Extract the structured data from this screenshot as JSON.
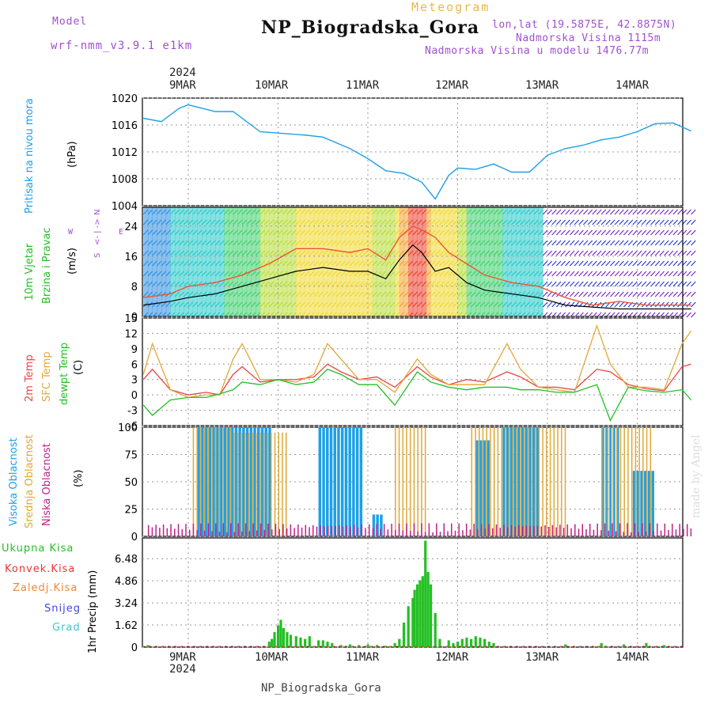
{
  "header": {
    "model_label": "Model",
    "model_name": "wrf-nmm_v3.9.1 e1km",
    "meteogram_label": "Meteogram",
    "station": "NP_Biogradska_Gora",
    "lonlat": "lon,lat (19.5875E, 42.8875N)",
    "elevation": "Nadmorska Visina 1115m",
    "model_elevation": "Nadmorska Visina u modelu 1476.77m",
    "year_top": "2024",
    "footer_station": "NP_Biogradska_Gora",
    "year_bottom": "2024",
    "credit": "made by Angel"
  },
  "dates": [
    "9MAR",
    "10MAR",
    "11MAR",
    "12MAR",
    "13MAR",
    "14MAR"
  ],
  "panel_labels": {
    "pressure": [
      "Pritisak na nivou mora",
      "(hPa)"
    ],
    "wind": [
      "10m Vjetar",
      "Brzina i Pravac",
      "(m/s)"
    ],
    "compass": [
      "S",
      "<- | ->",
      "N",
      "W",
      "E"
    ],
    "temp": [
      "2m Temp",
      "SFC Temp",
      "dewpt Temp",
      "(C)"
    ],
    "cloud": [
      "Visoka Oblacnost",
      "Srednja Oblacnost",
      "Niska Oblacnost",
      "(%)"
    ],
    "precip_axis": "1hr Precip (mm)",
    "precip_legend": [
      "Ukupna Kisa",
      "Konvek.Kisa",
      "Zaledj.Kisa",
      "Snijeg",
      "Grad"
    ]
  },
  "colors": {
    "pressure": "#1ea0e6",
    "temp2m": "#ee4444",
    "sfc": "#e0a838",
    "dewpt": "#22c022",
    "cloud_high": "#1ea0e6",
    "cloud_mid": "#e0a838",
    "cloud_low": "#c0208a",
    "rain": "#22c022",
    "conv": "#ee3333",
    "frz": "#ee8833",
    "snow": "#4444dd",
    "hail": "#33cccc",
    "gust": "#ee5533",
    "speed": "#000000"
  },
  "chart_data": [
    {
      "type": "line",
      "panel": "pressure",
      "ylim": [
        1004,
        1020
      ],
      "yticks": [
        1004,
        1008,
        1012,
        1016,
        1020
      ],
      "x_unit": "days since 9MAR 00UTC",
      "x": [
        -0.5,
        -0.3,
        -0.1,
        0.0,
        0.3,
        0.5,
        0.8,
        1.0,
        1.3,
        1.5,
        1.8,
        2.0,
        2.2,
        2.4,
        2.6,
        2.75,
        2.9,
        3.0,
        3.2,
        3.4,
        3.6,
        3.8,
        4.0,
        4.2,
        4.4,
        4.6,
        4.8,
        5.0,
        5.2,
        5.4,
        5.6
      ],
      "values": [
        1017,
        1016.5,
        1018.5,
        1019,
        1018,
        1018,
        1015,
        1014.8,
        1014.5,
        1014.2,
        1012.5,
        1011,
        1009.2,
        1008.8,
        1007.5,
        1005,
        1008.5,
        1009.6,
        1009.4,
        1010.2,
        1009,
        1009,
        1011.5,
        1012.5,
        1013,
        1013.8,
        1014.2,
        1015,
        1016.2,
        1016.3,
        1015.1
      ]
    },
    {
      "type": "line",
      "panel": "wind",
      "ylim": [
        0,
        29
      ],
      "yticks": [
        0,
        8,
        16,
        24
      ],
      "x": [
        -0.5,
        -0.2,
        0.0,
        0.3,
        0.6,
        0.9,
        1.2,
        1.5,
        1.8,
        2.0,
        2.2,
        2.35,
        2.5,
        2.6,
        2.75,
        2.9,
        3.1,
        3.3,
        3.6,
        3.9,
        4.2,
        4.5,
        4.8,
        5.1,
        5.4,
        5.6
      ],
      "series": [
        {
          "name": "speed",
          "values": [
            3,
            4,
            5,
            6,
            8,
            10,
            12,
            13,
            12,
            12,
            10,
            15,
            19,
            17,
            12,
            13,
            9,
            7,
            6,
            5,
            3,
            2.5,
            2,
            2,
            2,
            2
          ]
        },
        {
          "name": "gust",
          "values": [
            5,
            6,
            8,
            9,
            11,
            14,
            18,
            18,
            17,
            18,
            15,
            21,
            24,
            23,
            21,
            17,
            14,
            11,
            9,
            8,
            5,
            3,
            4,
            3,
            3,
            3
          ]
        }
      ]
    },
    {
      "type": "line",
      "panel": "temperature",
      "ylim": [
        -6,
        15
      ],
      "yticks": [
        -6,
        -3,
        0,
        3,
        6,
        9,
        12,
        15
      ],
      "x": [
        -0.5,
        -0.4,
        -0.2,
        0.0,
        0.2,
        0.35,
        0.5,
        0.6,
        0.8,
        1.0,
        1.2,
        1.4,
        1.55,
        1.7,
        1.9,
        2.1,
        2.3,
        2.55,
        2.7,
        2.9,
        3.1,
        3.3,
        3.55,
        3.7,
        3.9,
        4.1,
        4.3,
        4.55,
        4.7,
        4.9,
        5.1,
        5.3,
        5.5,
        5.6
      ],
      "series": [
        {
          "name": "2m Temp",
          "values": [
            3,
            5,
            1,
            0,
            0.5,
            0,
            4,
            5.5,
            2.5,
            3,
            3,
            3.5,
            6,
            4.5,
            3,
            3.5,
            1.5,
            5.5,
            3.5,
            2,
            3,
            2.5,
            4.5,
            3.5,
            1.5,
            1.5,
            1,
            5,
            4.5,
            2,
            1.2,
            0.8,
            5.5,
            6
          ]
        },
        {
          "name": "SFC Temp",
          "values": [
            4,
            10,
            1,
            -0.5,
            0,
            0,
            7,
            10,
            3,
            3,
            2.5,
            4,
            10,
            7,
            3,
            3,
            0.5,
            7,
            4,
            2,
            2,
            2,
            10,
            5,
            1.5,
            1,
            0.5,
            13.5,
            6,
            1.5,
            1.5,
            1,
            10,
            12.5
          ]
        },
        {
          "name": "dewpt Temp",
          "values": [
            -2,
            -4,
            -1,
            -0.5,
            -0.5,
            0.2,
            1,
            2.5,
            2,
            3,
            2,
            2.5,
            5,
            4,
            2,
            2,
            -2,
            4.5,
            2.5,
            1.5,
            1,
            1.5,
            1.5,
            1,
            1,
            0.5,
            0.5,
            2,
            -5,
            1.5,
            0.8,
            0.5,
            1,
            -1
          ]
        }
      ]
    },
    {
      "type": "bar",
      "panel": "cloud",
      "ylim": [
        0,
        100
      ],
      "yticks": [
        0,
        25,
        50,
        75,
        100
      ],
      "x_unit": "days since 9MAR 00UTC",
      "series": [
        {
          "name": "Visoka Oblacnost",
          "ranges": [
            [
              0.1,
              0.9,
              100
            ],
            [
              1.45,
              1.95,
              100
            ],
            [
              2.05,
              2.15,
              20
            ],
            [
              3.2,
              3.35,
              88
            ],
            [
              3.5,
              3.9,
              100
            ],
            [
              4.6,
              4.8,
              100
            ],
            [
              4.95,
              5.2,
              60
            ]
          ]
        },
        {
          "name": "Srednja Oblacnost",
          "ranges": [
            [
              0.05,
              0.5,
              100
            ],
            [
              0.5,
              1.1,
              95
            ],
            [
              2.3,
              2.65,
              100
            ],
            [
              3.15,
              3.4,
              100
            ],
            [
              3.4,
              4.2,
              100
            ],
            [
              4.6,
              5.15,
              100
            ]
          ]
        },
        {
          "name": "Niska Oblacnost",
          "ranges": [
            [
              -0.45,
              5.6,
              12
            ]
          ]
        }
      ]
    },
    {
      "type": "bar",
      "panel": "precipitation",
      "ylabel": "1hr Precip",
      "ylim": [
        0,
        8
      ],
      "yticks": [
        0,
        1.62,
        3.24,
        4.86,
        6.48
      ],
      "x_unit": "days since 9MAR 00UTC",
      "x": [
        -0.45,
        0.9,
        0.93,
        0.96,
        1.0,
        1.03,
        1.06,
        1.1,
        1.14,
        1.2,
        1.25,
        1.3,
        1.35,
        1.45,
        1.5,
        1.55,
        1.6,
        1.7,
        1.8,
        1.9,
        2.0,
        2.1,
        2.2,
        2.3,
        2.35,
        2.4,
        2.45,
        2.5,
        2.52,
        2.55,
        2.58,
        2.61,
        2.64,
        2.67,
        2.7,
        2.75,
        2.8,
        2.9,
        2.95,
        3.0,
        3.05,
        3.1,
        3.15,
        3.2,
        3.25,
        3.3,
        3.35,
        3.4,
        4.2,
        4.6,
        4.65,
        4.85,
        5.1,
        5.3
      ],
      "values": [
        0.15,
        0.4,
        0.6,
        1.1,
        1.6,
        2.0,
        1.4,
        1.1,
        0.9,
        0.8,
        0.7,
        0.6,
        0.8,
        0.5,
        0.5,
        0.4,
        0.3,
        0.15,
        0.2,
        0.15,
        0.2,
        0.15,
        0.1,
        0.3,
        0.6,
        1.8,
        3.0,
        3.6,
        4.2,
        4.6,
        4.9,
        5.2,
        7.8,
        5.5,
        4.6,
        2.5,
        0.6,
        0.5,
        0.3,
        0.4,
        0.6,
        0.7,
        0.6,
        0.8,
        0.7,
        0.6,
        0.4,
        0.3,
        0.2,
        0.3,
        0.1,
        0.2,
        0.3,
        0.15
      ]
    }
  ]
}
